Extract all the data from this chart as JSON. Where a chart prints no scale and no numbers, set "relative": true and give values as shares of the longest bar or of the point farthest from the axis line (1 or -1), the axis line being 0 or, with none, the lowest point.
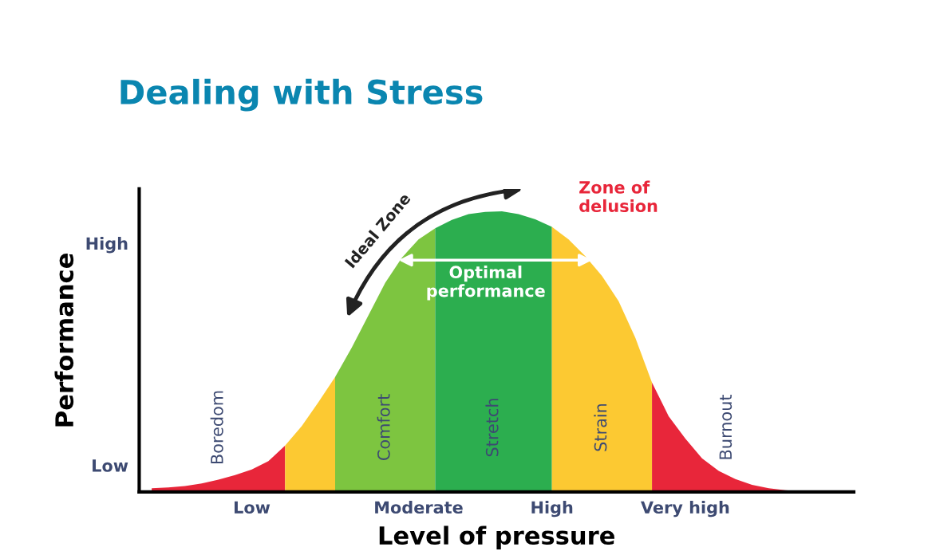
{
  "chart_data": {
    "type": "area",
    "title": "Dealing with Stress",
    "xlabel": "Level of pressure",
    "ylabel": "Performance",
    "relative": true,
    "categories": [
      null,
      null,
      null,
      null,
      null,
      null,
      "Low",
      null,
      null,
      null,
      null,
      null,
      null,
      null,
      null,
      null,
      "Moderate",
      null,
      null,
      null,
      null,
      null,
      null,
      null,
      "High",
      null,
      null,
      null,
      null,
      null,
      null,
      null,
      "Very high",
      null,
      null,
      null,
      null,
      null,
      null,
      null
    ],
    "grid": false,
    "series": [
      {
        "name": "Boredom",
        "color": "#e8263a",
        "values": [
          0.013,
          0.016,
          0.021,
          0.03,
          0.044,
          0.06,
          0.08,
          0.11,
          0.165,
          null,
          null,
          null,
          null,
          null,
          null,
          null,
          null,
          null,
          null,
          null,
          null,
          null,
          null,
          null,
          null,
          null,
          null,
          null,
          null,
          null,
          null,
          null,
          null,
          null,
          null,
          null,
          null,
          null,
          null,
          null
        ]
      },
      {
        "color": "#fcc932",
        "values": [
          null,
          null,
          null,
          null,
          null,
          null,
          null,
          null,
          0.165,
          0.235,
          0.32,
          0.41,
          null,
          null,
          null,
          null,
          null,
          null,
          null,
          null,
          null,
          null,
          null,
          null,
          null,
          null,
          null,
          null,
          null,
          null,
          null,
          null,
          null,
          null,
          null,
          null,
          null,
          null,
          null,
          null
        ]
      },
      {
        "name": "Comfort",
        "color": "#7dc540",
        "values": [
          null,
          null,
          null,
          null,
          null,
          null,
          null,
          null,
          null,
          null,
          null,
          0.41,
          0.515,
          0.63,
          0.745,
          0.835,
          0.9,
          0.94,
          null,
          null,
          null,
          null,
          null,
          null,
          null,
          null,
          null,
          null,
          null,
          null,
          null,
          null,
          null,
          null,
          null,
          null,
          null,
          null,
          null,
          null
        ]
      },
      {
        "name": "Stretch",
        "color": "#2cae4f",
        "values": [
          null,
          null,
          null,
          null,
          null,
          null,
          null,
          null,
          null,
          null,
          null,
          null,
          null,
          null,
          null,
          null,
          null,
          0.94,
          0.97,
          0.99,
          0.998,
          1,
          0.99,
          0.972,
          0.945,
          null,
          null,
          null,
          null,
          null,
          null,
          null,
          null,
          null,
          null,
          null,
          null,
          null,
          null,
          null
        ]
      },
      {
        "name": "Strain",
        "color": "#fcc932",
        "values": [
          null,
          null,
          null,
          null,
          null,
          null,
          null,
          null,
          null,
          null,
          null,
          null,
          null,
          null,
          null,
          null,
          null,
          null,
          null,
          null,
          null,
          null,
          null,
          null,
          0.945,
          0.9,
          0.84,
          0.77,
          0.68,
          0.55,
          0.39,
          null,
          null,
          null,
          null,
          null,
          null,
          null,
          null,
          null
        ]
      },
      {
        "name": "Burnout",
        "color": "#e8263a",
        "values": [
          null,
          null,
          null,
          null,
          null,
          null,
          null,
          null,
          null,
          null,
          null,
          null,
          null,
          null,
          null,
          null,
          null,
          null,
          null,
          null,
          null,
          null,
          null,
          null,
          null,
          null,
          null,
          null,
          null,
          null,
          0.39,
          0.27,
          0.19,
          0.12,
          0.075,
          0.046,
          0.025,
          0.013,
          0.006,
          0.002
        ]
      }
    ],
    "annotations": [
      "High",
      "Low",
      "Zone of\ndelusion",
      "Ideal Zone",
      "Optimal\nperformance"
    ]
  }
}
